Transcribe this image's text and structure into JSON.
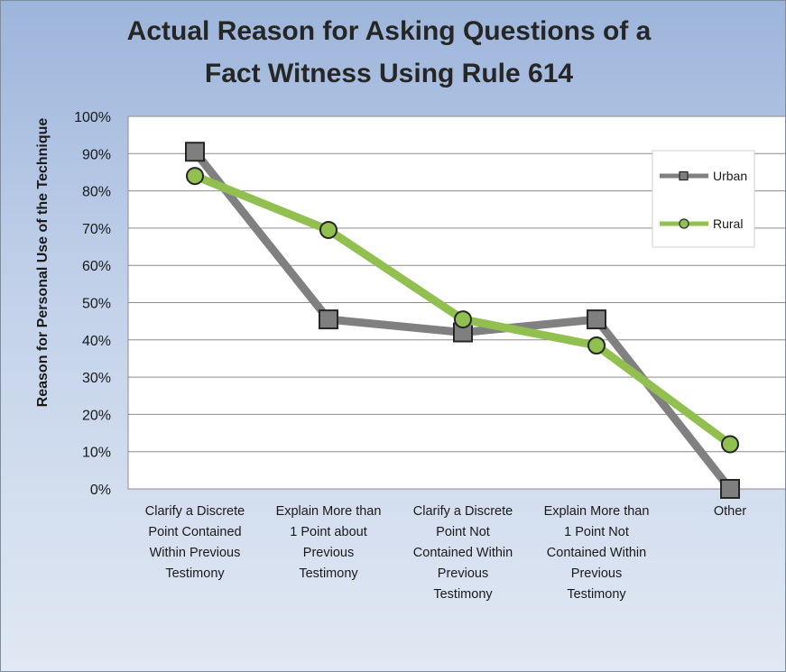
{
  "chart_data": {
    "type": "line",
    "title_lines": [
      "Actual Reason for Asking Questions of a",
      "Fact Witness Using Rule 614"
    ],
    "ylabel": "Reason for Personal Use of the Technique",
    "xlabel": "",
    "ylim": [
      0,
      100
    ],
    "y_ticks": [
      "0%",
      "10%",
      "20%",
      "30%",
      "40%",
      "50%",
      "60%",
      "70%",
      "80%",
      "90%",
      "100%"
    ],
    "grid": true,
    "legend_position": "top-right",
    "categories": [
      [
        "Clarify a Discrete",
        "Point Contained",
        "Within Previous",
        "Testimony"
      ],
      [
        "Explain More than",
        "1 Point about",
        "Previous",
        "Testimony"
      ],
      [
        "Clarify a Discrete",
        "Point Not",
        "Contained Within",
        "Previous",
        "Testimony"
      ],
      [
        "Explain More than",
        "1 Point Not",
        "Contained Within",
        "Previous",
        "Testimony"
      ],
      [
        "Other"
      ]
    ],
    "series": [
      {
        "name": "Urban",
        "values": [
          90.5,
          45.5,
          42,
          45.5,
          0
        ],
        "color": "#808080",
        "marker": "square"
      },
      {
        "name": "Rural",
        "values": [
          84,
          69.5,
          45.5,
          38.5,
          12
        ],
        "color": "#92c050",
        "marker": "circle"
      }
    ]
  }
}
